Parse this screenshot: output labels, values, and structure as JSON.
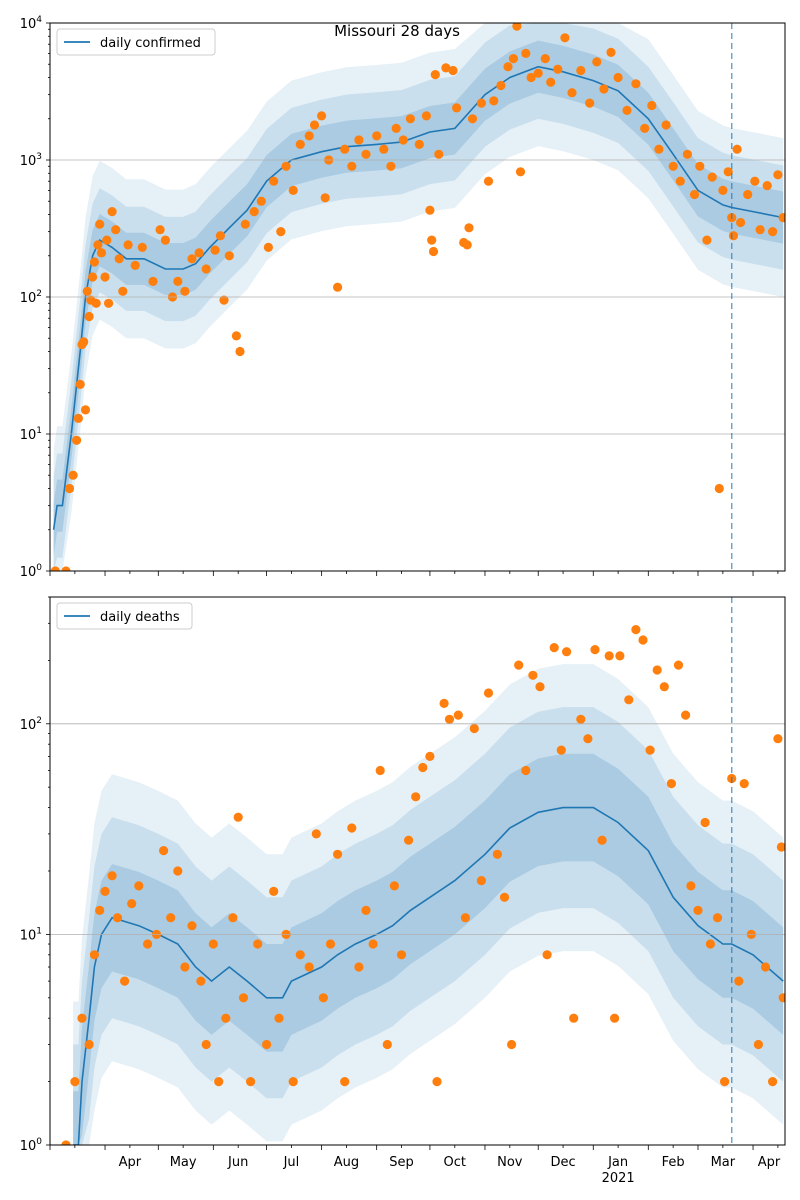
{
  "title": "Missouri 28 days",
  "colors": {
    "line": "#1f77b4",
    "points": "#ff7f0e",
    "band": "#1f77b4",
    "grid": "#b0b0b0",
    "vline": "#1f77b4"
  },
  "x_axis": {
    "month_labels": [
      "Apr",
      "May",
      "Jun",
      "Jul",
      "Aug",
      "Sep",
      "Oct",
      "Nov",
      "Dec",
      "Jan",
      "Feb",
      "Mar",
      "Apr"
    ],
    "year_label": "2021",
    "year_under_month": "Jan"
  },
  "chart_data": [
    {
      "type": "scatter",
      "scale": "log",
      "ylim": [
        1,
        10000
      ],
      "y_ticks": [
        "10^0",
        "10^1",
        "10^2",
        "10^3",
        "10^4"
      ],
      "grid": "horizontal",
      "legend": {
        "label": "daily confirmed",
        "placement": "top-left"
      },
      "projection_start": "2021-03-20",
      "median_line": [
        [
          "2020-03-03",
          2
        ],
        [
          "2020-03-05",
          3
        ],
        [
          "2020-03-08",
          3
        ],
        [
          "2020-03-13",
          10
        ],
        [
          "2020-03-18",
          40
        ],
        [
          "2020-03-21",
          100
        ],
        [
          "2020-03-25",
          200
        ],
        [
          "2020-03-29",
          260
        ],
        [
          "2020-04-05",
          230
        ],
        [
          "2020-04-13",
          190
        ],
        [
          "2020-04-23",
          190
        ],
        [
          "2020-05-05",
          160
        ],
        [
          "2020-05-15",
          160
        ],
        [
          "2020-05-22",
          175
        ],
        [
          "2020-05-30",
          230
        ],
        [
          "2020-06-10",
          320
        ],
        [
          "2020-06-20",
          430
        ],
        [
          "2020-07-01",
          700
        ],
        [
          "2020-07-15",
          1000
        ],
        [
          "2020-08-01",
          1150
        ],
        [
          "2020-08-15",
          1250
        ],
        [
          "2020-09-01",
          1300
        ],
        [
          "2020-09-15",
          1350
        ],
        [
          "2020-10-01",
          1600
        ],
        [
          "2020-10-15",
          1700
        ],
        [
          "2020-11-01",
          3000
        ],
        [
          "2020-11-15",
          4000
        ],
        [
          "2020-12-01",
          4800
        ],
        [
          "2020-12-15",
          4400
        ],
        [
          "2021-01-01",
          3800
        ],
        [
          "2021-01-15",
          3200
        ],
        [
          "2021-02-01",
          2000
        ],
        [
          "2021-02-15",
          1100
        ],
        [
          "2021-03-01",
          600
        ],
        [
          "2021-03-15",
          470
        ],
        [
          "2021-03-20",
          450
        ],
        [
          "2021-04-01",
          420
        ],
        [
          "2021-04-18",
          380
        ]
      ],
      "band_factors": [
        1.55,
        2.4,
        3.8
      ],
      "points": [
        [
          "2020-03-04",
          1
        ],
        [
          "2020-03-10",
          1
        ],
        [
          "2020-03-12",
          4
        ],
        [
          "2020-03-14",
          5
        ],
        [
          "2020-03-16",
          9
        ],
        [
          "2020-03-17",
          13
        ],
        [
          "2020-03-18",
          23
        ],
        [
          "2020-03-19",
          45
        ],
        [
          "2020-03-20",
          47
        ],
        [
          "2020-03-21",
          15
        ],
        [
          "2020-03-22",
          110
        ],
        [
          "2020-03-23",
          72
        ],
        [
          "2020-03-24",
          95
        ],
        [
          "2020-03-25",
          140
        ],
        [
          "2020-03-26",
          180
        ],
        [
          "2020-03-27",
          90
        ],
        [
          "2020-03-28",
          240
        ],
        [
          "2020-03-29",
          340
        ],
        [
          "2020-03-30",
          210
        ],
        [
          "2020-04-01",
          140
        ],
        [
          "2020-04-02",
          260
        ],
        [
          "2020-04-03",
          90
        ],
        [
          "2020-04-05",
          420
        ],
        [
          "2020-04-07",
          310
        ],
        [
          "2020-04-09",
          190
        ],
        [
          "2020-04-11",
          110
        ],
        [
          "2020-04-14",
          240
        ],
        [
          "2020-04-18",
          170
        ],
        [
          "2020-04-22",
          230
        ],
        [
          "2020-04-28",
          130
        ],
        [
          "2020-05-02",
          310
        ],
        [
          "2020-05-05",
          260
        ],
        [
          "2020-05-09",
          100
        ],
        [
          "2020-05-12",
          130
        ],
        [
          "2020-05-16",
          110
        ],
        [
          "2020-05-20",
          190
        ],
        [
          "2020-05-24",
          210
        ],
        [
          "2020-05-28",
          160
        ],
        [
          "2020-06-02",
          220
        ],
        [
          "2020-06-05",
          280
        ],
        [
          "2020-06-07",
          95
        ],
        [
          "2020-06-10",
          200
        ],
        [
          "2020-06-14",
          52
        ],
        [
          "2020-06-16",
          40
        ],
        [
          "2020-06-19",
          340
        ],
        [
          "2020-06-24",
          420
        ],
        [
          "2020-06-28",
          500
        ],
        [
          "2020-07-02",
          230
        ],
        [
          "2020-07-05",
          700
        ],
        [
          "2020-07-09",
          300
        ],
        [
          "2020-07-12",
          900
        ],
        [
          "2020-07-16",
          600
        ],
        [
          "2020-07-20",
          1300
        ],
        [
          "2020-07-25",
          1500
        ],
        [
          "2020-07-28",
          1800
        ],
        [
          "2020-08-01",
          2100
        ],
        [
          "2020-08-03",
          530
        ],
        [
          "2020-08-05",
          1000
        ],
        [
          "2020-08-10",
          118
        ],
        [
          "2020-08-14",
          1200
        ],
        [
          "2020-08-18",
          900
        ],
        [
          "2020-08-22",
          1400
        ],
        [
          "2020-08-26",
          1100
        ],
        [
          "2020-09-01",
          1500
        ],
        [
          "2020-09-05",
          1200
        ],
        [
          "2020-09-09",
          900
        ],
        [
          "2020-09-12",
          1700
        ],
        [
          "2020-09-16",
          1400
        ],
        [
          "2020-09-20",
          2000
        ],
        [
          "2020-09-25",
          1300
        ],
        [
          "2020-09-29",
          2100
        ],
        [
          "2020-10-01",
          430
        ],
        [
          "2020-10-02",
          260
        ],
        [
          "2020-10-03",
          215
        ],
        [
          "2020-10-04",
          4200
        ],
        [
          "2020-10-06",
          1100
        ],
        [
          "2020-10-10",
          4700
        ],
        [
          "2020-10-14",
          4500
        ],
        [
          "2020-10-16",
          2400
        ],
        [
          "2020-10-20",
          250
        ],
        [
          "2020-10-22",
          240
        ],
        [
          "2020-10-23",
          320
        ],
        [
          "2020-10-25",
          2000
        ],
        [
          "2020-10-30",
          2600
        ],
        [
          "2020-11-03",
          700
        ],
        [
          "2020-11-06",
          2700
        ],
        [
          "2020-11-10",
          3500
        ],
        [
          "2020-11-14",
          4800
        ],
        [
          "2020-11-17",
          5500
        ],
        [
          "2020-11-19",
          9500
        ],
        [
          "2020-11-21",
          820
        ],
        [
          "2020-11-24",
          6000
        ],
        [
          "2020-11-27",
          4000
        ],
        [
          "2020-12-01",
          4300
        ],
        [
          "2020-12-05",
          5500
        ],
        [
          "2020-12-08",
          3700
        ],
        [
          "2020-12-12",
          4600
        ],
        [
          "2020-12-16",
          7800
        ],
        [
          "2020-12-20",
          3100
        ],
        [
          "2020-12-25",
          4500
        ],
        [
          "2020-12-30",
          2600
        ],
        [
          "2021-01-03",
          5200
        ],
        [
          "2021-01-07",
          3300
        ],
        [
          "2021-01-11",
          6100
        ],
        [
          "2021-01-15",
          4000
        ],
        [
          "2021-01-20",
          2300
        ],
        [
          "2021-01-25",
          3600
        ],
        [
          "2021-01-30",
          1700
        ],
        [
          "2021-02-03",
          2500
        ],
        [
          "2021-02-07",
          1200
        ],
        [
          "2021-02-11",
          1800
        ],
        [
          "2021-02-15",
          900
        ],
        [
          "2021-02-19",
          700
        ],
        [
          "2021-02-23",
          1100
        ],
        [
          "2021-02-27",
          560
        ],
        [
          "2021-03-02",
          900
        ],
        [
          "2021-03-06",
          260
        ],
        [
          "2021-03-09",
          750
        ],
        [
          "2021-03-13",
          4
        ],
        [
          "2021-03-15",
          600
        ],
        [
          "2021-03-18",
          820
        ],
        [
          "2021-03-20",
          380
        ],
        [
          "2021-03-21",
          280
        ],
        [
          "2021-03-23",
          1200
        ],
        [
          "2021-03-25",
          350
        ],
        [
          "2021-03-29",
          560
        ],
        [
          "2021-04-02",
          700
        ],
        [
          "2021-04-05",
          310
        ],
        [
          "2021-04-09",
          650
        ],
        [
          "2021-04-12",
          300
        ],
        [
          "2021-04-15",
          780
        ],
        [
          "2021-04-18",
          380
        ]
      ]
    },
    {
      "type": "scatter",
      "scale": "log",
      "ylim": [
        1,
        400
      ],
      "y_ticks": [
        "10^0",
        "10^1",
        "10^2"
      ],
      "grid": "horizontal",
      "legend": {
        "label": "daily deaths",
        "placement": "top-left"
      },
      "projection_start": "2021-03-20",
      "median_line": [
        [
          "2020-03-14",
          1
        ],
        [
          "2020-03-17",
          1
        ],
        [
          "2020-03-19",
          2
        ],
        [
          "2020-03-23",
          4
        ],
        [
          "2020-03-26",
          7
        ],
        [
          "2020-03-30",
          10
        ],
        [
          "2020-04-05",
          12
        ],
        [
          "2020-04-20",
          11
        ],
        [
          "2020-05-01",
          10
        ],
        [
          "2020-05-12",
          9
        ],
        [
          "2020-05-22",
          7
        ],
        [
          "2020-05-31",
          6
        ],
        [
          "2020-06-10",
          7
        ],
        [
          "2020-06-20",
          6
        ],
        [
          "2020-07-01",
          5
        ],
        [
          "2020-07-10",
          5
        ],
        [
          "2020-07-15",
          6
        ],
        [
          "2020-08-01",
          7
        ],
        [
          "2020-08-10",
          8
        ],
        [
          "2020-08-20",
          9
        ],
        [
          "2020-09-01",
          10
        ],
        [
          "2020-09-10",
          11
        ],
        [
          "2020-09-20",
          13
        ],
        [
          "2020-10-01",
          15
        ],
        [
          "2020-10-15",
          18
        ],
        [
          "2020-11-01",
          24
        ],
        [
          "2020-11-15",
          32
        ],
        [
          "2020-12-01",
          38
        ],
        [
          "2020-12-15",
          40
        ],
        [
          "2021-01-01",
          40
        ],
        [
          "2021-01-15",
          34
        ],
        [
          "2021-02-01",
          25
        ],
        [
          "2021-02-15",
          15
        ],
        [
          "2021-03-01",
          11
        ],
        [
          "2021-03-15",
          9
        ],
        [
          "2021-03-20",
          9
        ],
        [
          "2021-04-01",
          8
        ],
        [
          "2021-04-18",
          6
        ]
      ],
      "band_factors": [
        1.8,
        3.0,
        4.8
      ],
      "points": [
        [
          "2020-03-10",
          1
        ],
        [
          "2020-03-15",
          2
        ],
        [
          "2020-03-19",
          4
        ],
        [
          "2020-03-23",
          3
        ],
        [
          "2020-03-26",
          8
        ],
        [
          "2020-03-29",
          13
        ],
        [
          "2020-04-01",
          16
        ],
        [
          "2020-04-05",
          19
        ],
        [
          "2020-04-08",
          12
        ],
        [
          "2020-04-12",
          6
        ],
        [
          "2020-04-16",
          14
        ],
        [
          "2020-04-20",
          17
        ],
        [
          "2020-04-25",
          9
        ],
        [
          "2020-04-30",
          10
        ],
        [
          "2020-05-04",
          25
        ],
        [
          "2020-05-08",
          12
        ],
        [
          "2020-05-12",
          20
        ],
        [
          "2020-05-16",
          7
        ],
        [
          "2020-05-20",
          11
        ],
        [
          "2020-05-25",
          6
        ],
        [
          "2020-05-28",
          3
        ],
        [
          "2020-06-01",
          9
        ],
        [
          "2020-06-04",
          2
        ],
        [
          "2020-06-08",
          4
        ],
        [
          "2020-06-12",
          12
        ],
        [
          "2020-06-15",
          36
        ],
        [
          "2020-06-18",
          5
        ],
        [
          "2020-06-22",
          2
        ],
        [
          "2020-06-26",
          9
        ],
        [
          "2020-07-01",
          3
        ],
        [
          "2020-07-05",
          16
        ],
        [
          "2020-07-08",
          4
        ],
        [
          "2020-07-12",
          10
        ],
        [
          "2020-07-16",
          2
        ],
        [
          "2020-07-20",
          8
        ],
        [
          "2020-07-25",
          7
        ],
        [
          "2020-07-29",
          30
        ],
        [
          "2020-08-02",
          5
        ],
        [
          "2020-08-06",
          9
        ],
        [
          "2020-08-10",
          24
        ],
        [
          "2020-08-14",
          2
        ],
        [
          "2020-08-18",
          32
        ],
        [
          "2020-08-22",
          7
        ],
        [
          "2020-08-26",
          13
        ],
        [
          "2020-08-30",
          9
        ],
        [
          "2020-09-03",
          60
        ],
        [
          "2020-09-07",
          3
        ],
        [
          "2020-09-11",
          17
        ],
        [
          "2020-09-15",
          8
        ],
        [
          "2020-09-19",
          28
        ],
        [
          "2020-09-23",
          45
        ],
        [
          "2020-09-27",
          62
        ],
        [
          "2020-10-01",
          70
        ],
        [
          "2020-10-05",
          2
        ],
        [
          "2020-10-09",
          125
        ],
        [
          "2020-10-12",
          105
        ],
        [
          "2020-10-17",
          110
        ],
        [
          "2020-10-21",
          12
        ],
        [
          "2020-10-26",
          95
        ],
        [
          "2020-10-30",
          18
        ],
        [
          "2020-11-03",
          140
        ],
        [
          "2020-11-08",
          24
        ],
        [
          "2020-11-12",
          15
        ],
        [
          "2020-11-16",
          3
        ],
        [
          "2020-11-20",
          190
        ],
        [
          "2020-11-24",
          60
        ],
        [
          "2020-11-28",
          170
        ],
        [
          "2020-12-02",
          150
        ],
        [
          "2020-12-06",
          8
        ],
        [
          "2020-12-10",
          230
        ],
        [
          "2020-12-14",
          75
        ],
        [
          "2020-12-17",
          220
        ],
        [
          "2020-12-21",
          4
        ],
        [
          "2020-12-25",
          105
        ],
        [
          "2020-12-29",
          85
        ],
        [
          "2021-01-02",
          225
        ],
        [
          "2021-01-06",
          28
        ],
        [
          "2021-01-10",
          210
        ],
        [
          "2021-01-13",
          4
        ],
        [
          "2021-01-16",
          210
        ],
        [
          "2021-01-21",
          130
        ],
        [
          "2021-01-25",
          280
        ],
        [
          "2021-01-29",
          250
        ],
        [
          "2021-02-02",
          75
        ],
        [
          "2021-02-06",
          180
        ],
        [
          "2021-02-10",
          150
        ],
        [
          "2021-02-14",
          52
        ],
        [
          "2021-02-18",
          190
        ],
        [
          "2021-02-22",
          110
        ],
        [
          "2021-02-25",
          17
        ],
        [
          "2021-03-01",
          13
        ],
        [
          "2021-03-05",
          34
        ],
        [
          "2021-03-08",
          9
        ],
        [
          "2021-03-12",
          12
        ],
        [
          "2021-03-16",
          2
        ],
        [
          "2021-03-20",
          55
        ],
        [
          "2021-03-24",
          6
        ],
        [
          "2021-03-27",
          52
        ],
        [
          "2021-03-31",
          10
        ],
        [
          "2021-04-04",
          3
        ],
        [
          "2021-04-08",
          7
        ],
        [
          "2021-04-12",
          2
        ],
        [
          "2021-04-15",
          85
        ],
        [
          "2021-04-17",
          26
        ],
        [
          "2021-04-18",
          5
        ]
      ]
    }
  ]
}
